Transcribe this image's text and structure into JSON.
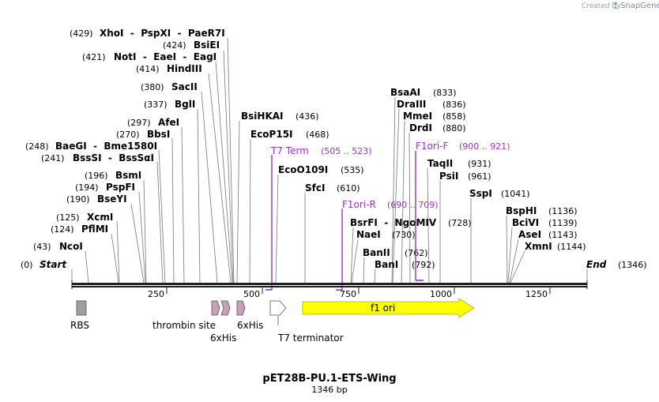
{
  "branding": {
    "created_by": "Created by",
    "brand": "SnapGene"
  },
  "map": {
    "title": "pET28B-PU.1-ETS-Wing",
    "length_label": "1346 bp",
    "start_label": "Start",
    "start_pos": "(0)",
    "end_label": "End",
    "end_pos": "(1346)",
    "ticks": [
      "250",
      "500",
      "750",
      "1000",
      "1250"
    ]
  },
  "sites": [
    {
      "pos": "(429)",
      "names": "XhoI  -  PspXI  -  PaeR7I"
    },
    {
      "pos": "(424)",
      "names": "BsiEI"
    },
    {
      "pos": "(421)",
      "names": "NotI  -  EaeI  -  EagI"
    },
    {
      "pos": "(414)",
      "names": "HindIII"
    },
    {
      "pos": "(380)",
      "names": "SacII"
    },
    {
      "pos": "(337)",
      "names": "BglI"
    },
    {
      "pos": "(297)",
      "names": "AfeI"
    },
    {
      "pos": "(270)",
      "names": "BbsI"
    },
    {
      "pos": "(248)",
      "names": "BaeGI  -  Bme1580I"
    },
    {
      "pos": "(241)",
      "names": "BssSI  -  BssSαI"
    },
    {
      "pos": "(196)",
      "names": "BsmI"
    },
    {
      "pos": "(194)",
      "names": "PspFI"
    },
    {
      "pos": "(190)",
      "names": "BseYI"
    },
    {
      "pos": "(125)",
      "names": "XcmI"
    },
    {
      "pos": "(124)",
      "names": "PflMI"
    },
    {
      "pos": "(43)",
      "names": "NcoI"
    },
    {
      "pos": "(436)",
      "names": "BsiHKAI"
    },
    {
      "pos": "(468)",
      "names": "EcoP15I"
    },
    {
      "pos": "(535)",
      "names": "EcoO109I"
    },
    {
      "pos": "(610)",
      "names": "SfcI"
    },
    {
      "pos": "(833)",
      "names": "BsaAI"
    },
    {
      "pos": "(836)",
      "names": "DraIII"
    },
    {
      "pos": "(858)",
      "names": "MmeI"
    },
    {
      "pos": "(880)",
      "names": "DrdI"
    },
    {
      "pos": "(931)",
      "names": "TaqII"
    },
    {
      "pos": "(961)",
      "names": "PsiI"
    },
    {
      "pos": "(1041)",
      "names": "SspI"
    },
    {
      "pos": "(1136)",
      "names": "BspHI"
    },
    {
      "pos": "(1139)",
      "names": "BciVI"
    },
    {
      "pos": "(1143)",
      "names": "AseI"
    },
    {
      "pos": "(1144)",
      "names": "XmnI"
    },
    {
      "pos": "(728)",
      "names": "BsrFI  -  NgoMIV"
    },
    {
      "pos": "(730)",
      "names": "NaeI"
    },
    {
      "pos": "(762)",
      "names": "BanII"
    },
    {
      "pos": "(792)",
      "names": "BanI"
    }
  ],
  "primers": [
    {
      "name": "T7 Term",
      "range": "(505 .. 523)"
    },
    {
      "name": "F1ori-R",
      "range": "(690 .. 709)"
    },
    {
      "name": "F1ori-F",
      "range": "(900 .. 921)"
    }
  ],
  "features": {
    "rbs": "RBS",
    "thrombin": "thrombin site",
    "his1": "6xHis",
    "his2": "6xHis",
    "t7term": "T7 terminator",
    "f1ori": "f1 ori"
  },
  "colors": {
    "primer": "#9b30c8",
    "f1ori_fill": "#ffff00",
    "f1ori_stroke": "#b0b000",
    "his_fill": "#c8a0b8",
    "rbs_fill": "#a0a0a0",
    "brand_blue": "#5b8ac8"
  }
}
